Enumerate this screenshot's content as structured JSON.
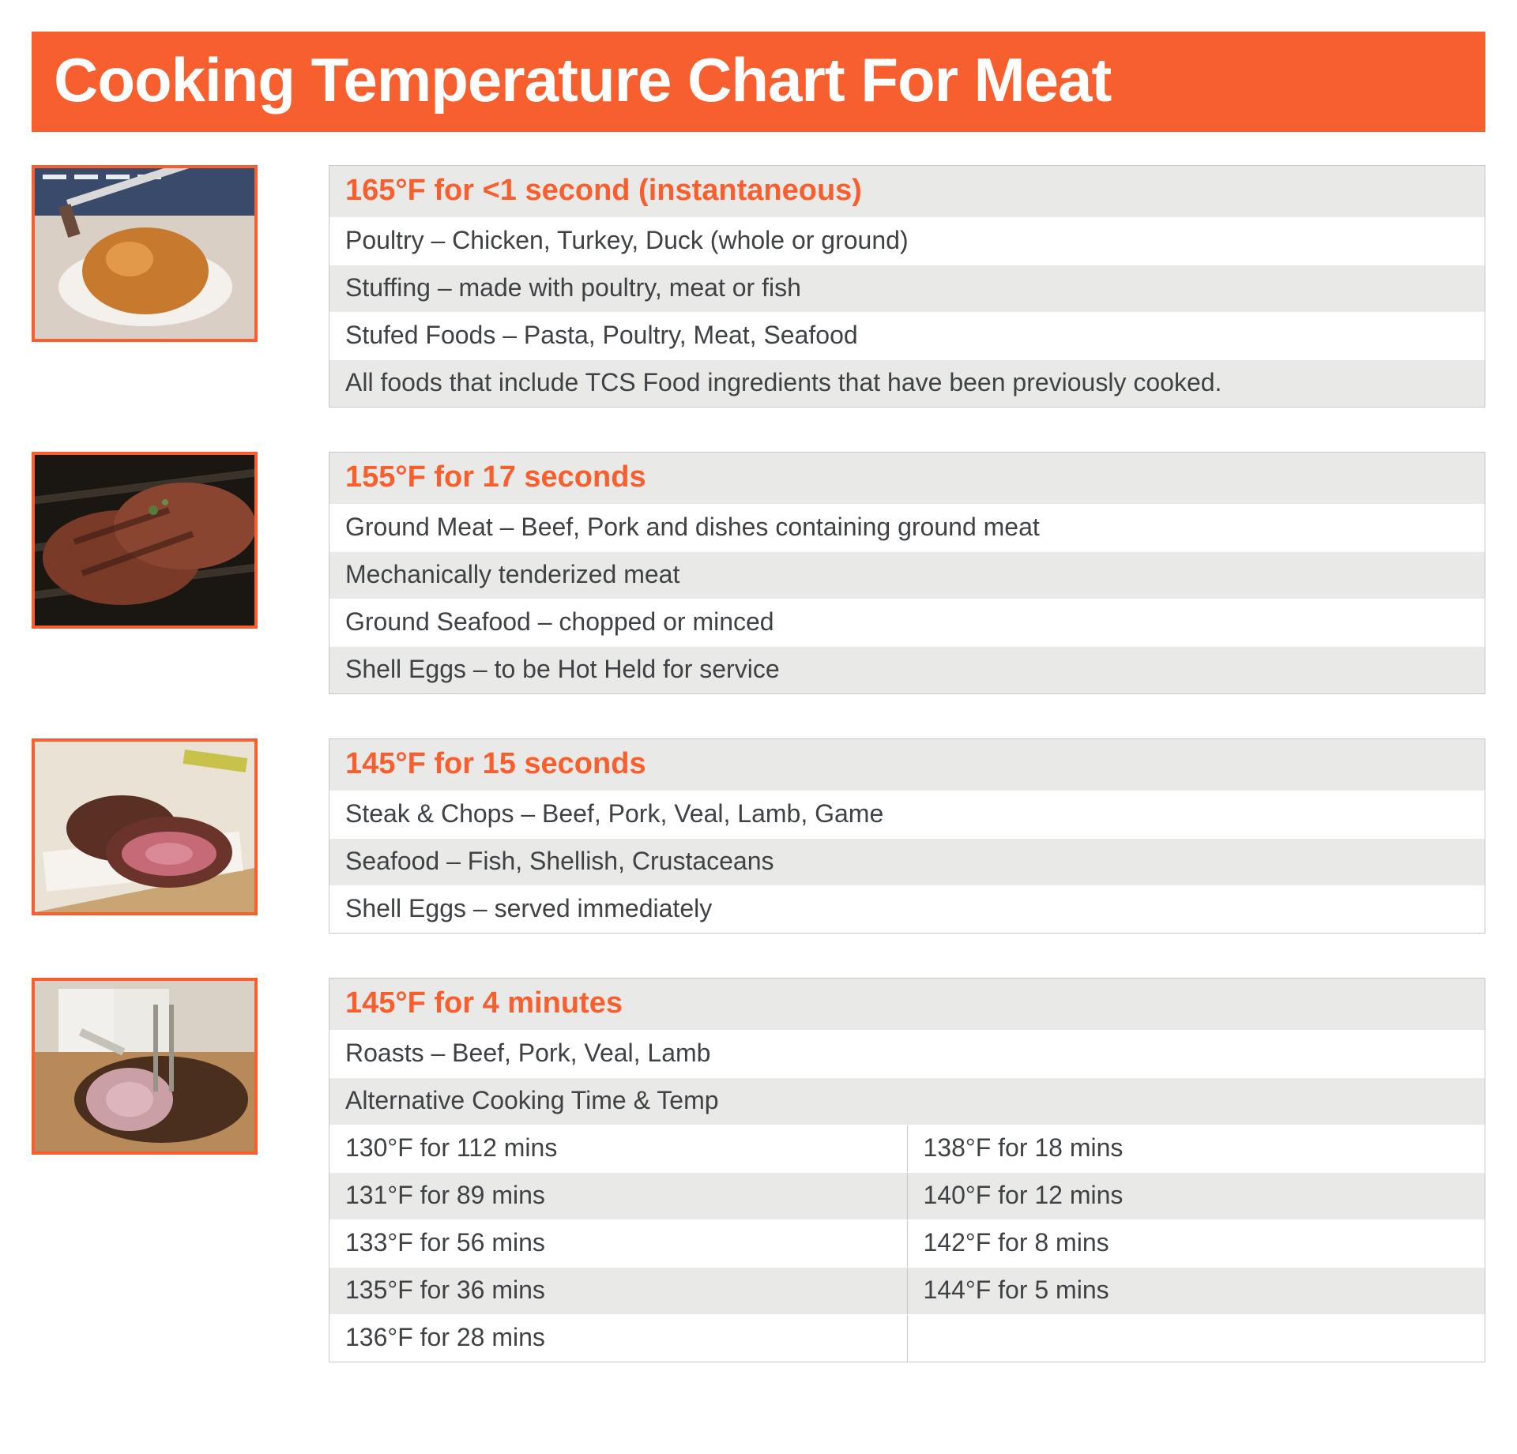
{
  "title": "Cooking Temperature Chart For Meat",
  "title_fontsize": 78,
  "header_fontsize": 38,
  "row_fontsize": 32,
  "colors": {
    "accent": "#f85f2e",
    "text": "#3f4244",
    "row_shade": "#e9e9e8",
    "row_plain": "#ffffff",
    "border": "#c7c8c8"
  },
  "sections": [
    {
      "thumb": "poultry",
      "header": "165°F for <1 second (instantaneous)",
      "rows": [
        "Poultry – Chicken, Turkey, Duck (whole or ground)",
        "Stuffing – made with poultry, meat or fish",
        "Stufed Foods – Pasta, Poultry, Meat, Seafood",
        "All foods that include TCS Food ingredients that have been previously cooked."
      ]
    },
    {
      "thumb": "ground",
      "header": "155°F for 17 seconds",
      "rows": [
        "Ground Meat – Beef, Pork and dishes containing ground meat",
        "Mechanically tenderized meat",
        "Ground Seafood – chopped or minced",
        "Shell Eggs – to be Hot Held for service"
      ]
    },
    {
      "thumb": "steak",
      "header": "145°F for 15 seconds",
      "rows": [
        "Steak & Chops – Beef, Pork, Veal, Lamb, Game",
        "Seafood – Fish, Shellish, Crustaceans",
        "Shell Eggs – served immediately"
      ]
    },
    {
      "thumb": "roast",
      "header": "145°F for 4 minutes",
      "rows": [
        "Roasts – Beef, Pork, Veal, Lamb",
        "Alternative Cooking Time & Temp"
      ],
      "split_rows": [
        [
          "130°F for 112 mins",
          "138°F for 18 mins"
        ],
        [
          "131°F for 89 mins",
          "140°F for 12 mins"
        ],
        [
          "133°F for 56 mins",
          "142°F for 8 mins"
        ],
        [
          "135°F for 36 mins",
          "144°F for 5 mins"
        ],
        [
          "136°F for 28 mins",
          ""
        ]
      ]
    }
  ]
}
